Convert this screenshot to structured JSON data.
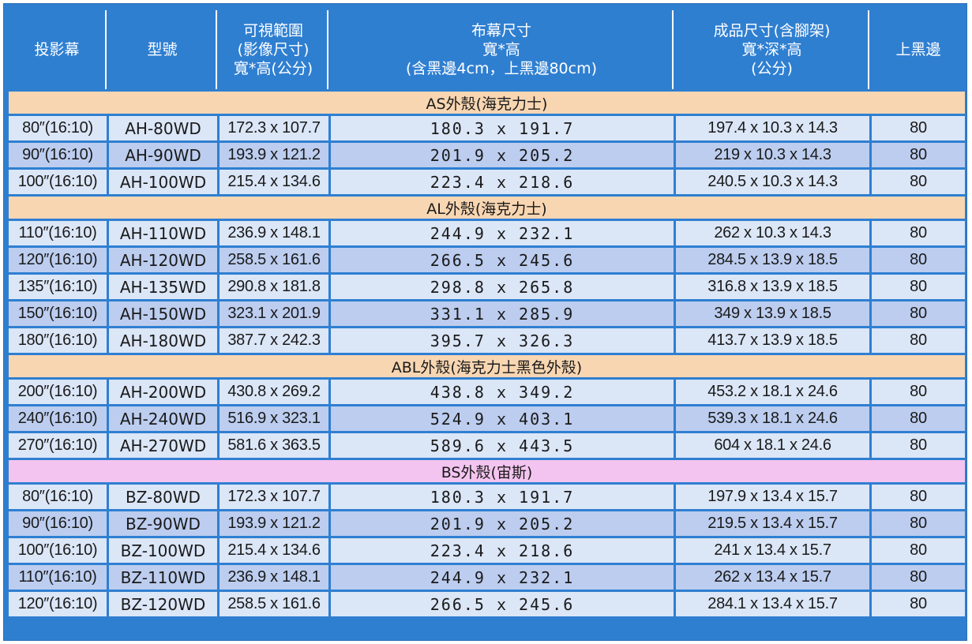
{
  "table": {
    "headers": [
      "投影幕",
      "型號",
      "可視範圍\n(影像尺寸)\n寬*高(公分)",
      "布幕尺寸\n寬*高\n(含黑邊4cm，上黑邊80cm)",
      "成品尺寸(含腳架)\n寬*深*高\n(公分)",
      "上黑邊"
    ],
    "sections": [
      {
        "title": "AS外殼(海克力士)",
        "rows": [
          {
            "screen": "80″(16:10)",
            "model": "AH-80WD",
            "view": "172.3 x 107.7",
            "size": "180.3 x 191.7",
            "product": "197.4 x 10.3 x 14.3",
            "top": "80"
          },
          {
            "screen": "90″(16:10)",
            "model": "AH-90WD",
            "view": "193.9 x 121.2",
            "size": "201.9 x 205.2",
            "product": "219 x 10.3 x 14.3",
            "top": "80"
          },
          {
            "screen": "100″(16:10)",
            "model": "AH-100WD",
            "view": "215.4 x 134.6",
            "size": "223.4 x 218.6",
            "product": "240.5 x 10.3 x 14.3",
            "top": "80"
          }
        ]
      },
      {
        "title": "AL外殼(海克力士)",
        "rows": [
          {
            "screen": "110″(16:10)",
            "model": "AH-110WD",
            "view": "236.9 x 148.1",
            "size": "244.9 x 232.1",
            "product": "262 x 10.3 x 14.3",
            "top": "80"
          },
          {
            "screen": "120″(16:10)",
            "model": "AH-120WD",
            "view": "258.5 x 161.6",
            "size": "266.5 x 245.6",
            "product": "284.5 x 13.9 x 18.5",
            "top": "80"
          },
          {
            "screen": "135″(16:10)",
            "model": "AH-135WD",
            "view": "290.8 x 181.8",
            "size": "298.8 x 265.8",
            "product": "316.8 x 13.9 x 18.5",
            "top": "80"
          },
          {
            "screen": "150″(16:10)",
            "model": "AH-150WD",
            "view": "323.1 x 201.9",
            "size": "331.1 x 285.9",
            "product": "349 x 13.9 x 18.5",
            "top": "80"
          },
          {
            "screen": "180″(16:10)",
            "model": "AH-180WD",
            "view": "387.7 x 242.3",
            "size": "395.7 x 326.3",
            "product": "413.7 x 13.9 x 18.5",
            "top": "80"
          }
        ]
      },
      {
        "title": "ABL外殼(海克力士黑色外殼)",
        "rows": [
          {
            "screen": "200″(16:10)",
            "model": "AH-200WD",
            "view": "430.8 x 269.2",
            "size": "438.8 x 349.2",
            "product": "453.2 x 18.1 x 24.6",
            "top": "80"
          },
          {
            "screen": "240″(16:10)",
            "model": "AH-240WD",
            "view": "516.9 x 323.1",
            "size": "524.9 x 403.1",
            "product": "539.3 x 18.1 x 24.6",
            "top": "80"
          },
          {
            "screen": "270″(16:10)",
            "model": "AH-270WD",
            "view": "581.6 x 363.5",
            "size": "589.6 x 443.5",
            "product": "604 x 18.1 x 24.6",
            "top": "80"
          }
        ]
      },
      {
        "title": "BS外殼(宙斯)",
        "rows": [
          {
            "screen": "80″(16:10)",
            "model": "BZ-80WD",
            "view": "172.3 x 107.7",
            "size": "180.3 x 191.7",
            "product": "197.9 x 13.4 x 15.7",
            "top": "80"
          },
          {
            "screen": "90″(16:10)",
            "model": "BZ-90WD",
            "view": "193.9 x 121.2",
            "size": "201.9 x 205.2",
            "product": "219.5 x 13.4 x 15.7",
            "top": "80"
          },
          {
            "screen": "100″(16:10)",
            "model": "BZ-100WD",
            "view": "215.4 x 134.6",
            "size": "223.4 x 218.6",
            "product": "241 x 13.4 x 15.7",
            "top": "80"
          },
          {
            "screen": "110″(16:10)",
            "model": "BZ-110WD",
            "view": "236.9 x 148.1",
            "size": "244.9 x 232.1",
            "product": "262 x 13.4 x 15.7",
            "top": "80"
          },
          {
            "screen": "120″(16:10)",
            "model": "BZ-120WD",
            "view": "258.5 x 161.6",
            "size": "266.5 x 245.6",
            "product": "284.1 x 13.4 x 15.7",
            "top": "80"
          }
        ]
      }
    ]
  },
  "colors": {
    "header_blue": "#2f7fd1",
    "section_orange": "#f8d6b2",
    "section_pink": "#f4c4f0",
    "row_light": "#dbe6f7",
    "row_dark": "#bccdef"
  }
}
